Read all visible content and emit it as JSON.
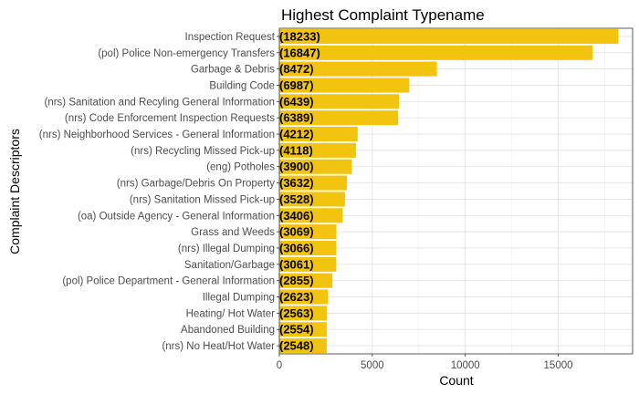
{
  "chart_data": {
    "type": "bar",
    "orientation": "horizontal",
    "title": "Highest Complaint Typename",
    "xlabel": "Count",
    "ylabel": "Complaint Descriptors",
    "xlim": [
      0,
      19000
    ],
    "xticks": [
      0,
      5000,
      10000,
      15000
    ],
    "grid": true,
    "bar_color": "#f2c40f",
    "categories": [
      "Inspection Request",
      "(pol) Police Non-emergency Transfers",
      "Garbage & Debris",
      "Building Code",
      "(nrs) Sanitation and Recyling General Information",
      "(nrs) Code Enforcement Inspection Requests",
      "(nrs) Neighborhood Services - General Information",
      "(nrs) Recycling Missed Pick-up",
      "(eng) Potholes",
      "(nrs) Garbage/Debris On Property",
      "(nrs) Sanitation Missed Pick-up",
      "(oa) Outside Agency - General Information",
      "Grass and Weeds",
      "(nrs) Illegal Dumping",
      "Sanitation/Garbage",
      "(pol) Police Department - General Information",
      "Illegal Dumping",
      "Heating/ Hot Water",
      "Abandoned Building",
      "(nrs) No Heat/Hot Water"
    ],
    "values": [
      18233,
      16847,
      8472,
      6987,
      6439,
      6389,
      4212,
      4118,
      3900,
      3632,
      3528,
      3406,
      3069,
      3066,
      3061,
      2855,
      2623,
      2563,
      2554,
      2548
    ],
    "data_labels": [
      "(18233)",
      "(16847)",
      "(8472)",
      "(6987)",
      "(6439)",
      "(6389)",
      "(4212)",
      "(4118)",
      "(3900)",
      "(3632)",
      "(3528)",
      "(3406)",
      "(3069)",
      "(3066)",
      "(3061)",
      "(2855)",
      "(2623)",
      "(2563)",
      "(2554)",
      "(2548)"
    ]
  }
}
